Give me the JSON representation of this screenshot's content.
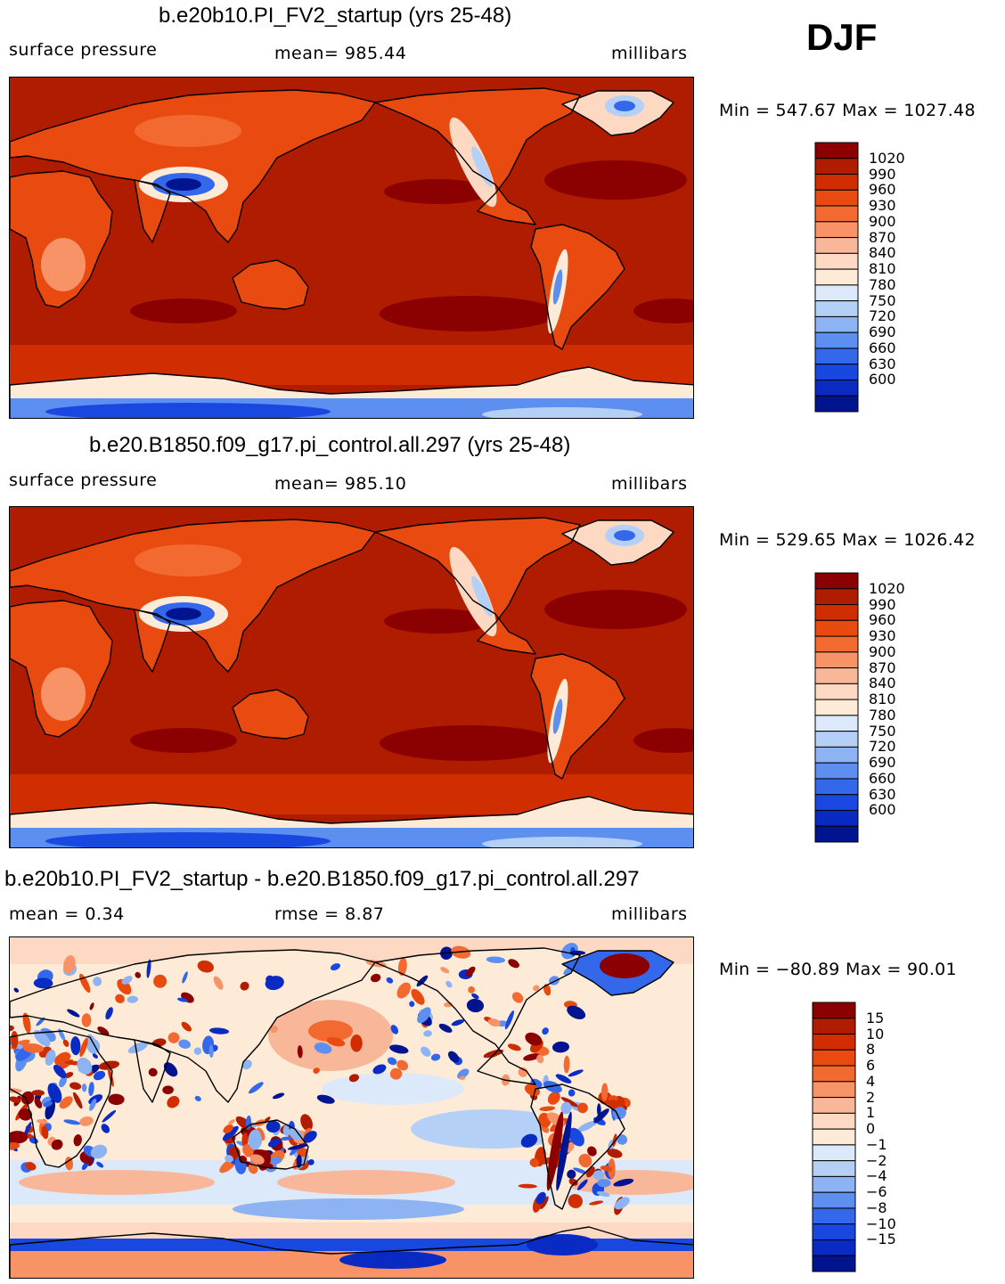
{
  "season": "DJF",
  "panels": [
    {
      "title": "b.e20b10.PI_FV2_startup (yrs 25-48)",
      "variable": "surface pressure",
      "stat": "mean=  985.44",
      "units": "millibars",
      "minmax": "Min  =  547.67  Max  =  1027.48",
      "kind": "absolute"
    },
    {
      "title": "b.e20.B1850.f09_g17.pi_control.all.297 (yrs 25-48)",
      "variable": "surface pressure",
      "stat": "mean=  985.10",
      "units": "millibars",
      "minmax": "Min  =  529.65  Max  =  1026.42",
      "kind": "absolute"
    },
    {
      "title": "b.e20b10.PI_FV2_startup - b.e20.B1850.f09_g17.pi_control.all.297",
      "variable": "mean =     0.34",
      "stat": "rmse =     8.87",
      "units": "millibars",
      "minmax": "Min  =  −80.89  Max  =   90.01",
      "kind": "difference"
    }
  ],
  "chart_data": [
    {
      "type": "heatmap",
      "title": "b.e20b10.PI_FV2_startup (yrs 25-48)",
      "variable": "surface pressure",
      "units": "millibars",
      "mean": 985.44,
      "min": 547.67,
      "max": 1027.48,
      "colorbar_levels": [
        1020,
        990,
        960,
        930,
        900,
        870,
        840,
        810,
        780,
        750,
        720,
        690,
        660,
        630,
        600
      ],
      "colorbar_colors": [
        "#8b0000",
        "#b01c00",
        "#d02e00",
        "#e84a10",
        "#f26a30",
        "#f79366",
        "#f9b79a",
        "#fdd8c2",
        "#fdebd8",
        "#dce9fb",
        "#b5d0f7",
        "#8db3f2",
        "#5d8ff0",
        "#3368ea",
        "#1848df",
        "#0a2ac4",
        "#00148f"
      ]
    },
    {
      "type": "heatmap",
      "title": "b.e20.B1850.f09_g17.pi_control.all.297 (yrs 25-48)",
      "variable": "surface pressure",
      "units": "millibars",
      "mean": 985.1,
      "min": 529.65,
      "max": 1026.42,
      "colorbar_levels": [
        1020,
        990,
        960,
        930,
        900,
        870,
        840,
        810,
        780,
        750,
        720,
        690,
        660,
        630,
        600
      ],
      "colorbar_colors": [
        "#8b0000",
        "#b01c00",
        "#d02e00",
        "#e84a10",
        "#f26a30",
        "#f79366",
        "#f9b79a",
        "#fdd8c2",
        "#fdebd8",
        "#dce9fb",
        "#b5d0f7",
        "#8db3f2",
        "#5d8ff0",
        "#3368ea",
        "#1848df",
        "#0a2ac4",
        "#00148f"
      ]
    },
    {
      "type": "heatmap",
      "title": "b.e20b10.PI_FV2_startup - b.e20.B1850.f09_g17.pi_control.all.297",
      "units": "millibars",
      "mean": 0.34,
      "rmse": 8.87,
      "min": -80.89,
      "max": 90.01,
      "colorbar_levels": [
        "15",
        "10",
        "8",
        "6",
        "4",
        "2",
        "1",
        "0",
        "−1",
        "−2",
        "−4",
        "−6",
        "−8",
        "−10",
        "−15"
      ],
      "colorbar_colors": [
        "#8b0000",
        "#b01c00",
        "#d02e00",
        "#e84a10",
        "#f26a30",
        "#f79366",
        "#f9b79a",
        "#fdd8c2",
        "#fdebd8",
        "#dce9fb",
        "#b5d0f7",
        "#8db3f2",
        "#5d8ff0",
        "#3368ea",
        "#1848df",
        "#0a2ac4",
        "#00148f"
      ]
    }
  ]
}
